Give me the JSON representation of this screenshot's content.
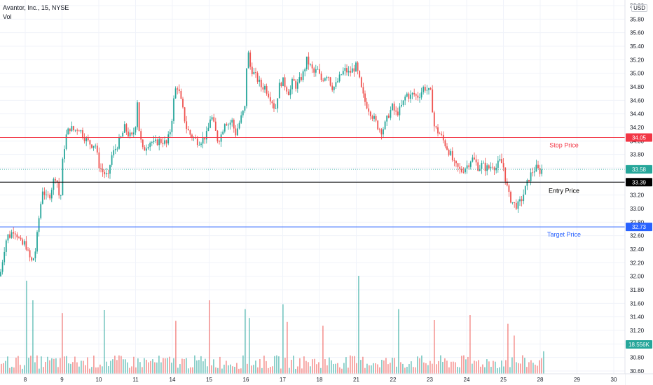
{
  "legend": {
    "title": "Avantor, Inc., 15, NYSE",
    "volume_label": "Vol"
  },
  "currency_label": "USD",
  "colors": {
    "up": "#26a69a",
    "down": "#ef5350",
    "stop": "#f23645",
    "target": "#2962ff",
    "entry": "#000000",
    "last": "#26a69a",
    "grid": "#f0f3fa",
    "axis_text": "#131722"
  },
  "chart_data": {
    "type": "candlestick",
    "title": "Avantor, Inc., 15, NYSE",
    "ylim": [
      30.6,
      36.0
    ],
    "y_ticks": [
      "36.00",
      "35.80",
      "35.60",
      "35.40",
      "35.20",
      "35.00",
      "34.80",
      "34.60",
      "34.40",
      "34.20",
      "34.00",
      "33.80",
      "33.60",
      "33.40",
      "33.20",
      "33.00",
      "32.80",
      "32.60",
      "32.40",
      "32.20",
      "32.00",
      "31.80",
      "31.60",
      "31.40",
      "31.20",
      "31.00",
      "30.80",
      "30.60"
    ],
    "x_ticks": [
      "8",
      "9",
      "10",
      "11",
      "14",
      "15",
      "16",
      "17",
      "18",
      "21",
      "22",
      "23",
      "24",
      "25",
      "28",
      "29",
      "30"
    ],
    "grid": true,
    "candle_path": [
      [
        0,
        32.0
      ],
      [
        6,
        32.4
      ],
      [
        10,
        32.6
      ],
      [
        14,
        32.6
      ],
      [
        20,
        32.7
      ],
      [
        25,
        32.6
      ],
      [
        31,
        32.45
      ],
      [
        36,
        32.5
      ],
      [
        41,
        32.3
      ],
      [
        46,
        32.2
      ],
      [
        51,
        32.4
      ],
      [
        56,
        32.9
      ],
      [
        61,
        33.3
      ],
      [
        66,
        33.15
      ],
      [
        71,
        33.2
      ],
      [
        76,
        33.4
      ],
      [
        80,
        33.5
      ],
      [
        83,
        33.3
      ],
      [
        86,
        33.05
      ],
      [
        90,
        33.8
      ],
      [
        95,
        34.1
      ],
      [
        100,
        34.2
      ],
      [
        106,
        34.15
      ],
      [
        112,
        34.2
      ],
      [
        118,
        34.1
      ],
      [
        124,
        34.0
      ],
      [
        130,
        33.95
      ],
      [
        136,
        33.95
      ],
      [
        141,
        33.65
      ],
      [
        146,
        33.55
      ],
      [
        151,
        33.5
      ],
      [
        155,
        33.45
      ],
      [
        158,
        33.75
      ],
      [
        163,
        33.85
      ],
      [
        168,
        33.95
      ],
      [
        173,
        34.05
      ],
      [
        178,
        34.2
      ],
      [
        183,
        34.1
      ],
      [
        188,
        34.05
      ],
      [
        193,
        34.2
      ],
      [
        196,
        34.6
      ],
      [
        199,
        34.1
      ],
      [
        204,
        33.85
      ],
      [
        210,
        33.95
      ],
      [
        215,
        34.0
      ],
      [
        220,
        33.95
      ],
      [
        226,
        34.0
      ],
      [
        232,
        34.0
      ],
      [
        238,
        33.95
      ],
      [
        244,
        34.2
      ],
      [
        248,
        34.6
      ],
      [
        252,
        34.85
      ],
      [
        256,
        34.7
      ],
      [
        261,
        34.45
      ],
      [
        266,
        34.2
      ],
      [
        271,
        34.1
      ],
      [
        276,
        34.05
      ],
      [
        281,
        34.0
      ],
      [
        286,
        34.0
      ],
      [
        291,
        34.05
      ],
      [
        296,
        34.1
      ],
      [
        301,
        34.4
      ],
      [
        306,
        34.2
      ],
      [
        311,
        34.0
      ],
      [
        316,
        34.1
      ],
      [
        321,
        34.3
      ],
      [
        326,
        34.25
      ],
      [
        331,
        34.3
      ],
      [
        336,
        34.1
      ],
      [
        341,
        34.25
      ],
      [
        346,
        34.4
      ],
      [
        350,
        34.5
      ],
      [
        353,
        35.4
      ],
      [
        357,
        35.1
      ],
      [
        362,
        35.0
      ],
      [
        368,
        34.9
      ],
      [
        373,
        34.8
      ],
      [
        378,
        34.8
      ],
      [
        383,
        34.7
      ],
      [
        388,
        34.6
      ],
      [
        393,
        34.45
      ],
      [
        398,
        34.8
      ],
      [
        403,
        34.9
      ],
      [
        408,
        34.8
      ],
      [
        413,
        34.7
      ],
      [
        418,
        34.9
      ],
      [
        423,
        34.8
      ],
      [
        428,
        34.9
      ],
      [
        433,
        35.0
      ],
      [
        438,
        35.2
      ],
      [
        443,
        35.1
      ],
      [
        448,
        35.0
      ],
      [
        453,
        35.05
      ],
      [
        458,
        34.9
      ],
      [
        463,
        34.95
      ],
      [
        468,
        35.0
      ],
      [
        473,
        34.8
      ],
      [
        478,
        34.8
      ],
      [
        483,
        34.9
      ],
      [
        488,
        35.0
      ],
      [
        493,
        35.05
      ],
      [
        498,
        35.0
      ],
      [
        503,
        35.05
      ],
      [
        508,
        35.1
      ],
      [
        512,
        34.95
      ],
      [
        516,
        34.75
      ],
      [
        520,
        34.6
      ],
      [
        525,
        34.5
      ],
      [
        530,
        34.4
      ],
      [
        535,
        34.3
      ],
      [
        540,
        34.2
      ],
      [
        545,
        34.15
      ],
      [
        550,
        34.25
      ],
      [
        555,
        34.4
      ],
      [
        560,
        34.5
      ],
      [
        565,
        34.4
      ],
      [
        570,
        34.45
      ],
      [
        575,
        34.55
      ],
      [
        580,
        34.7
      ],
      [
        585,
        34.65
      ],
      [
        590,
        34.7
      ],
      [
        595,
        34.65
      ],
      [
        600,
        34.7
      ],
      [
        605,
        34.8
      ],
      [
        610,
        34.75
      ],
      [
        615,
        34.7
      ],
      [
        618,
        34.4
      ],
      [
        620,
        34.2
      ],
      [
        624,
        34.15
      ],
      [
        628,
        34.1
      ],
      [
        633,
        34.0
      ],
      [
        638,
        33.9
      ],
      [
        643,
        33.8
      ],
      [
        648,
        33.65
      ],
      [
        653,
        33.6
      ],
      [
        658,
        33.55
      ],
      [
        663,
        33.6
      ],
      [
        668,
        33.65
      ],
      [
        673,
        33.75
      ],
      [
        678,
        33.7
      ],
      [
        683,
        33.6
      ],
      [
        688,
        33.65
      ],
      [
        693,
        33.6
      ],
      [
        698,
        33.6
      ],
      [
        703,
        33.65
      ],
      [
        708,
        33.6
      ],
      [
        713,
        33.7
      ],
      [
        718,
        33.65
      ],
      [
        722,
        33.4
      ],
      [
        726,
        33.2
      ],
      [
        731,
        33.1
      ],
      [
        735,
        33.05
      ],
      [
        740,
        33.05
      ],
      [
        745,
        33.15
      ],
      [
        750,
        33.3
      ],
      [
        755,
        33.45
      ],
      [
        760,
        33.55
      ],
      [
        765,
        33.6
      ],
      [
        770,
        33.55
      ],
      [
        774,
        33.58
      ]
    ],
    "levels": [
      {
        "price": 34.05,
        "label": "34.05",
        "annotation": "Stop Price",
        "color": "#f23645"
      },
      {
        "price": 33.39,
        "label": "33.39",
        "annotation": "Entry Price",
        "color": "#000000"
      },
      {
        "price": 32.73,
        "label": "32.73",
        "annotation": "Target Price",
        "color": "#2962ff"
      }
    ],
    "last_price": {
      "price": 33.58,
      "label": "33.58"
    },
    "volume_last_label": "18.556K",
    "volume_spikes": [
      {
        "x": 35,
        "h": 0.95,
        "up": true
      },
      {
        "x": 44,
        "h": 0.75,
        "up": true
      },
      {
        "x": 87,
        "h": 0.62,
        "up": false
      },
      {
        "x": 146,
        "h": 0.65,
        "up": true
      },
      {
        "x": 248,
        "h": 0.54,
        "up": false
      },
      {
        "x": 296,
        "h": 0.75,
        "up": false
      },
      {
        "x": 348,
        "h": 0.66,
        "up": true
      },
      {
        "x": 355,
        "h": 0.57,
        "up": true
      },
      {
        "x": 403,
        "h": 0.71,
        "up": true
      },
      {
        "x": 407,
        "h": 0.53,
        "up": false
      },
      {
        "x": 460,
        "h": 0.49,
        "up": false
      },
      {
        "x": 510,
        "h": 1.0,
        "up": true
      },
      {
        "x": 568,
        "h": 0.66,
        "up": true
      },
      {
        "x": 618,
        "h": 0.55,
        "up": false
      },
      {
        "x": 668,
        "h": 0.6,
        "up": false
      },
      {
        "x": 722,
        "h": 0.51,
        "up": false
      },
      {
        "x": 732,
        "h": 0.39,
        "up": false
      },
      {
        "x": 773,
        "h": 0.23,
        "up": true
      }
    ]
  }
}
